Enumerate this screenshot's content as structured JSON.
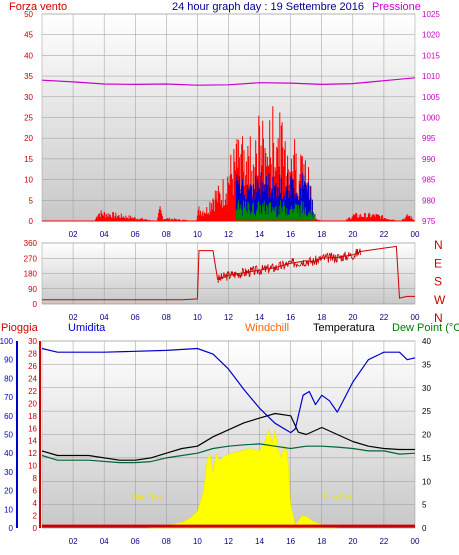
{
  "header": {
    "left_label": "Forza vento",
    "center_title": "24 hour graph day : 19 Settembre 2016",
    "right_label": "Pressione"
  },
  "legend_row": {
    "pioggia": "Pioggia",
    "umidita": "Umidita",
    "windchill": "Windchill",
    "temperatura": "Temperatura",
    "dew_point": "Dew Point (°C"
  },
  "annotations": {
    "sun_rise": "Sun Rise",
    "sun_set": "Sun Set"
  },
  "colors": {
    "wind": "#ff0000",
    "gust": "#0000cc",
    "gust2": "#008800",
    "pressure": "#cc00cc",
    "direction": "#cc0000",
    "humidity": "#0000cc",
    "temperature": "#000000",
    "dewpoint": "#006633",
    "solar": "#ffff00",
    "rain": "#cc0000",
    "sky": "#00008b",
    "windchill": "#ff6600",
    "dew_label": "#008000"
  },
  "chart_data": [
    {
      "type": "line",
      "name": "wind-pressure",
      "x_ticks": [
        "02",
        "04",
        "06",
        "08",
        "10",
        "12",
        "14",
        "16",
        "18",
        "20",
        "22",
        "00"
      ],
      "left_axis": {
        "label": "Forza vento",
        "ticks": [
          0,
          5,
          10,
          15,
          20,
          25,
          30,
          35,
          40,
          45,
          50
        ],
        "range": [
          0,
          50
        ]
      },
      "right_axis": {
        "label": "Pressione",
        "ticks": [
          975,
          980,
          985,
          990,
          995,
          1000,
          1005,
          1010,
          1015,
          1020,
          1025
        ],
        "range": [
          975,
          1025
        ]
      },
      "series": [
        {
          "name": "Pressione",
          "axis": "right",
          "x": [
            0,
            2,
            4,
            6,
            8,
            10,
            12,
            14,
            16,
            18,
            20,
            22,
            24
          ],
          "y": [
            1009.0,
            1008.6,
            1008.1,
            1008.0,
            1008.1,
            1007.8,
            1007.9,
            1008.4,
            1008.3,
            1008.0,
            1008.2,
            1008.9,
            1009.6
          ]
        },
        {
          "name": "Forza vento (max)",
          "axis": "left",
          "x": [
            0,
            3.4,
            3.6,
            7.4,
            7.6,
            7.8,
            9.9,
            10.1,
            10.6,
            11.0,
            11.5,
            12.0,
            12.5,
            13.0,
            13.5,
            14.0,
            14.5,
            15.0,
            15.5,
            16.0,
            16.5,
            17.0,
            17.4,
            17.6,
            18.0,
            19.5,
            20.0,
            21.5,
            23.0,
            23.6,
            24
          ],
          "y": [
            0,
            0,
            3,
            0,
            4,
            1,
            0,
            4,
            4,
            9,
            9,
            16,
            20,
            23,
            22,
            27,
            24,
            30,
            25,
            24,
            20,
            17,
            7,
            1,
            0,
            0,
            2,
            2,
            0,
            2,
            0
          ]
        }
      ]
    },
    {
      "type": "line",
      "name": "wind-direction",
      "x_ticks": [
        "02",
        "04",
        "06",
        "08",
        "10",
        "12",
        "14",
        "16",
        "18",
        "20",
        "22",
        "00"
      ],
      "y_axis": {
        "ticks": [
          0,
          90,
          180,
          270,
          360
        ],
        "range": [
          0,
          360
        ]
      },
      "direction_labels": [
        "N",
        "W",
        "S",
        "E",
        "N"
      ],
      "series": [
        {
          "name": "Direzione",
          "x": [
            0,
            3,
            6,
            9,
            10.0,
            10.1,
            11.0,
            11.3,
            12,
            13,
            14,
            15,
            16,
            17,
            17.5,
            18,
            19,
            20,
            20.5,
            22,
            22.8,
            23,
            23.5,
            24
          ],
          "y": [
            25,
            25,
            25,
            25,
            30,
            315,
            315,
            145,
            170,
            185,
            200,
            215,
            240,
            255,
            250,
            270,
            275,
            290,
            310,
            330,
            340,
            35,
            45,
            45
          ]
        }
      ]
    },
    {
      "type": "line",
      "name": "weather",
      "x_ticks": [
        "02",
        "04",
        "06",
        "08",
        "10",
        "12",
        "14",
        "16",
        "18",
        "20",
        "22",
        "00"
      ],
      "left_axis_humidity": {
        "label": "Umidita",
        "ticks": [
          0,
          10,
          20,
          30,
          40,
          50,
          60,
          70,
          80,
          90,
          100
        ],
        "range": [
          0,
          100
        ]
      },
      "left_axis_rain": {
        "label": "Pioggia",
        "ticks": [
          0,
          2,
          4,
          6,
          8,
          10,
          12,
          14,
          16,
          18,
          20,
          22,
          24,
          26,
          28,
          30
        ],
        "range": [
          0,
          30
        ]
      },
      "right_axis": {
        "ticks": [
          0,
          5,
          10,
          15,
          20,
          25,
          30,
          35,
          40
        ],
        "range": [
          0,
          40
        ]
      },
      "series": [
        {
          "name": "Umidita",
          "axis": "humidity",
          "x": [
            0,
            1,
            4,
            8,
            10,
            11,
            12,
            13,
            14,
            15,
            16,
            16.3,
            16.8,
            17.2,
            17.6,
            18.0,
            18.5,
            19,
            20,
            21,
            22,
            23,
            23.5,
            24
          ],
          "y": [
            96,
            94,
            94,
            95,
            96,
            93,
            85,
            74,
            64,
            56,
            51,
            53,
            71,
            73,
            66,
            71,
            68,
            62,
            78,
            90,
            94,
            94,
            90,
            91
          ]
        },
        {
          "name": "Temperatura",
          "axis": "right",
          "x": [
            0,
            1,
            3,
            5,
            6,
            7,
            8,
            9,
            10,
            11,
            12,
            13,
            14,
            15,
            16,
            16.5,
            17,
            18,
            19,
            20,
            21,
            22,
            23,
            24
          ],
          "y": [
            16.5,
            15.5,
            15.5,
            14.5,
            14.5,
            15.0,
            16.0,
            17.0,
            17.5,
            19.5,
            21.0,
            22.5,
            23.5,
            24.5,
            24.0,
            20.5,
            20.0,
            21.5,
            20.0,
            18.5,
            17.5,
            17.0,
            16.8,
            16.8
          ]
        },
        {
          "name": "Dew Point",
          "axis": "right",
          "x": [
            0,
            1,
            3,
            5,
            6,
            7,
            8,
            9,
            10,
            11,
            12,
            13,
            14,
            15,
            16,
            17,
            18,
            19,
            20,
            21,
            22,
            23,
            24
          ],
          "y": [
            15.5,
            14.5,
            14.5,
            14.0,
            14.0,
            14.2,
            15.0,
            15.5,
            16.0,
            17.0,
            17.5,
            17.8,
            18.0,
            17.5,
            17.0,
            17.5,
            17.5,
            17.3,
            17.0,
            16.5,
            16.5,
            15.8,
            16.0
          ]
        },
        {
          "name": "Solar",
          "axis": "right",
          "x": [
            6.8,
            7.5,
            8,
            9,
            9.5,
            10,
            10.4,
            10.6,
            10.8,
            11.0,
            11.2,
            11.4,
            11.8,
            12.2,
            12.8,
            13.4,
            14.0,
            14.4,
            14.6,
            14.8,
            15.0,
            15.2,
            15.4,
            15.6,
            15.8,
            16.0,
            16.3,
            16.5,
            16.7,
            17.0,
            17.4,
            17.8,
            18.2,
            19.0
          ],
          "y": [
            0,
            0.2,
            0.6,
            1.2,
            2.0,
            3.5,
            8.0,
            14.0,
            16.0,
            12.0,
            16.0,
            14.5,
            15.5,
            16.0,
            16.5,
            17.0,
            16.5,
            19.0,
            21.0,
            18.0,
            21.0,
            17.0,
            15.0,
            17.5,
            16.0,
            5.0,
            0.8,
            1.5,
            2.5,
            2.5,
            1.5,
            1.0,
            0.3,
            0
          ]
        },
        {
          "name": "Pioggia",
          "axis": "rain",
          "x": [
            0,
            24
          ],
          "y": [
            0.3,
            0.3
          ]
        }
      ]
    }
  ]
}
